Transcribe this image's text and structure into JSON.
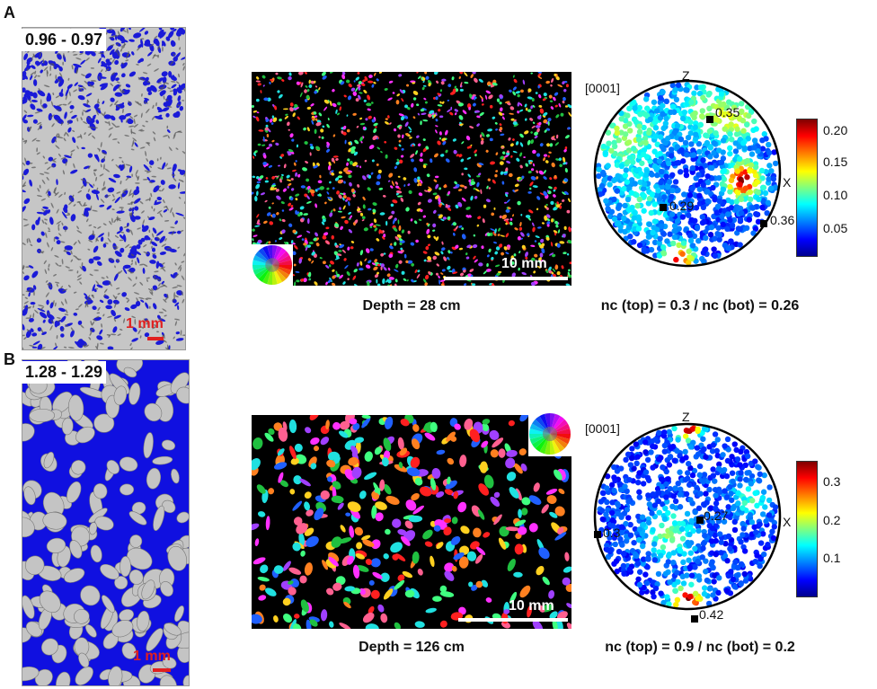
{
  "panels": [
    {
      "letter": "A",
      "range": "0.96 - 0.97",
      "scale_left": "1 mm",
      "scale_map": "10 mm",
      "depth_caption": "Depth = 28 cm",
      "nc_caption": "nc (top) = 0.3 / nc (bot) = 0.26",
      "pole": {
        "title": "[0001]",
        "z_label": "Z",
        "x_label": "X",
        "values": [
          "0.35",
          "0.29",
          "0.36"
        ]
      },
      "colorbar_ticks": [
        "0.20",
        "0.15",
        "0.10",
        "0.05"
      ]
    },
    {
      "letter": "B",
      "range": "1.28 - 1.29",
      "scale_left": "1 mm",
      "scale_map": "10 mm",
      "depth_caption": "Depth = 126 cm",
      "nc_caption": "nc (top) = 0.9 / nc (bot) = 0.2",
      "pole": {
        "title": "[0001]",
        "z_label": "Z",
        "x_label": "X",
        "values": [
          "0.27",
          "0.3",
          "0.42"
        ]
      },
      "colorbar_ticks": [
        "0.3",
        "0.2",
        "0.1"
      ]
    }
  ],
  "colors": {
    "pore_blue": "#1a1ad8",
    "grain_gray": "#c8c8c8",
    "scale_red": "#e02020"
  }
}
